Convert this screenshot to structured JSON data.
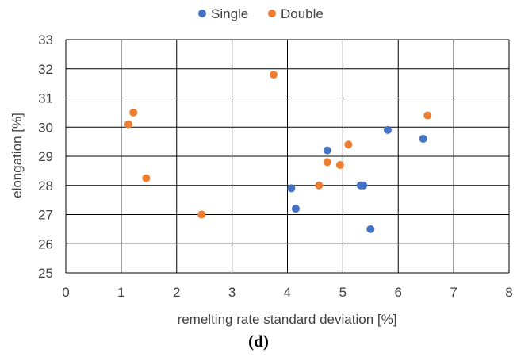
{
  "caption": "(d)",
  "chart_data": {
    "type": "scatter",
    "xlabel": "remelting rate standard deviation [%]",
    "ylabel": "elongation [%]",
    "xlim": [
      0,
      8
    ],
    "ylim": [
      25,
      33
    ],
    "x_ticks": [
      "0",
      "1",
      "2",
      "3",
      "4",
      "5",
      "6",
      "7",
      "8"
    ],
    "y_ticks": [
      "25",
      "26",
      "27",
      "28",
      "29",
      "30",
      "31",
      "32",
      "33"
    ],
    "grid": true,
    "legend_position": "top-center",
    "series": [
      {
        "name": "Single",
        "color": "#4472C4",
        "points": [
          {
            "x": 4.07,
            "y": 27.9
          },
          {
            "x": 4.15,
            "y": 27.2
          },
          {
            "x": 4.72,
            "y": 29.2
          },
          {
            "x": 5.32,
            "y": 28.0
          },
          {
            "x": 5.37,
            "y": 28.0
          },
          {
            "x": 5.5,
            "y": 26.5
          },
          {
            "x": 5.81,
            "y": 29.9
          },
          {
            "x": 6.45,
            "y": 29.6
          }
        ]
      },
      {
        "name": "Double",
        "color": "#ED7D31",
        "points": [
          {
            "x": 1.13,
            "y": 30.1
          },
          {
            "x": 1.22,
            "y": 30.5
          },
          {
            "x": 1.45,
            "y": 28.25
          },
          {
            "x": 2.45,
            "y": 27.0
          },
          {
            "x": 3.75,
            "y": 31.8
          },
          {
            "x": 4.57,
            "y": 28.0
          },
          {
            "x": 4.72,
            "y": 28.8
          },
          {
            "x": 4.95,
            "y": 28.7
          },
          {
            "x": 5.1,
            "y": 29.4
          },
          {
            "x": 6.53,
            "y": 30.4
          }
        ]
      }
    ]
  }
}
